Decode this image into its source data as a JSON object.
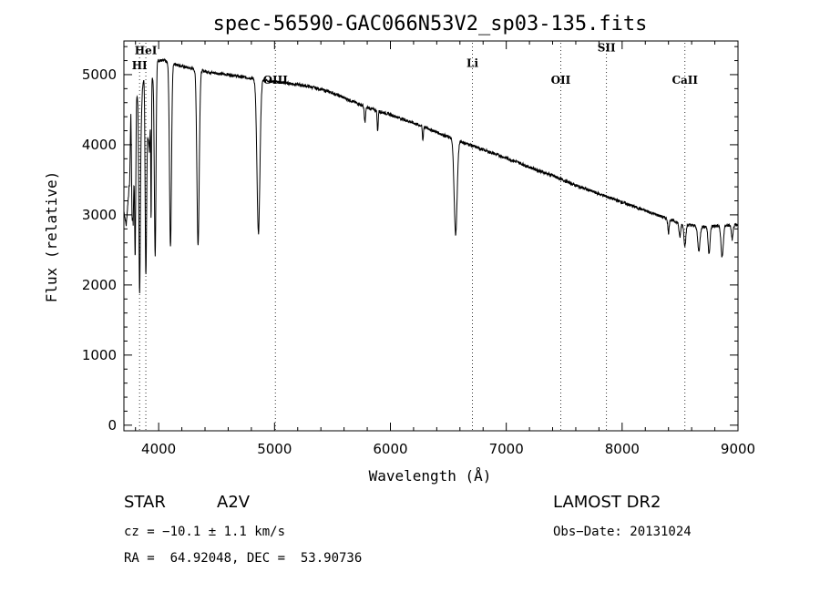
{
  "chart_data": {
    "type": "line",
    "title": "spec-56590-GAC066N53V2_sp03-135.fits",
    "xlabel": "Wavelength (Å)",
    "ylabel": "Flux (relative)",
    "xlim": [
      3700,
      9000
    ],
    "ylim": [
      -80,
      5480
    ],
    "xticks": [
      4000,
      5000,
      6000,
      7000,
      8000,
      9000
    ],
    "yticks": [
      0,
      1000,
      2000,
      3000,
      4000,
      5000
    ],
    "grid": false,
    "series": [
      {
        "x": [
          3700,
          3720,
          3740,
          3760,
          3780,
          3800,
          3820,
          3840,
          3860,
          3880,
          3900,
          3920,
          3940,
          3960,
          3980,
          4000,
          4050,
          4100,
          4150,
          4200,
          4250,
          4300,
          4350,
          4400,
          4450,
          4500,
          4550,
          4600,
          4650,
          4700,
          4750,
          4800,
          4850,
          4900,
          4950,
          5000,
          5050,
          5100,
          5150,
          5200,
          5300,
          5400,
          5500,
          5600,
          5700,
          5800,
          5900,
          6000,
          6100,
          6200,
          6300,
          6400,
          6500,
          6600,
          6700,
          6800,
          6900,
          7000,
          7100,
          7200,
          7300,
          7400,
          7500,
          7600,
          7700,
          7800,
          7900,
          8000,
          8100,
          8200,
          8300,
          8400,
          8500,
          8600,
          8700,
          8800,
          8900,
          9000
        ],
        "y": [
          3050,
          2850,
          3300,
          4500,
          2900,
          4950,
          4600,
          3800,
          4800,
          5100,
          4300,
          3900,
          4950,
          5000,
          5250,
          5200,
          5200,
          5150,
          5150,
          5120,
          5100,
          5080,
          5060,
          5050,
          5030,
          5020,
          5010,
          5000,
          4990,
          4970,
          4960,
          4950,
          4940,
          4930,
          4910,
          4900,
          4890,
          4880,
          4870,
          4860,
          4830,
          4790,
          4740,
          4670,
          4600,
          4530,
          4480,
          4430,
          4370,
          4310,
          4250,
          4180,
          4110,
          4050,
          3990,
          3930,
          3870,
          3810,
          3750,
          3680,
          3620,
          3560,
          3490,
          3420,
          3360,
          3300,
          3240,
          3180,
          3120,
          3060,
          3000,
          2940,
          2880,
          2850,
          2830,
          2840,
          2850,
          2850
        ]
      }
    ],
    "absorption_lines": [
      {
        "center": 3750,
        "depth": 400,
        "width": 6
      },
      {
        "center": 3770,
        "depth": 700,
        "width": 6
      },
      {
        "center": 3798,
        "depth": 2300,
        "width": 7
      },
      {
        "center": 3835,
        "depth": 2100,
        "width": 8
      },
      {
        "center": 3889,
        "depth": 2600,
        "width": 9
      },
      {
        "center": 3935,
        "depth": 1800,
        "width": 4
      },
      {
        "center": 3970,
        "depth": 2700,
        "width": 10
      },
      {
        "center": 4102,
        "depth": 2600,
        "width": 12
      },
      {
        "center": 4340,
        "depth": 2500,
        "width": 14
      },
      {
        "center": 4861,
        "depth": 2200,
        "width": 18
      },
      {
        "center": 5780,
        "depth": 220,
        "width": 8
      },
      {
        "center": 5890,
        "depth": 300,
        "width": 6
      },
      {
        "center": 6280,
        "depth": 200,
        "width": 6
      },
      {
        "center": 6563,
        "depth": 1350,
        "width": 18
      },
      {
        "center": 8400,
        "depth": 200,
        "width": 8
      },
      {
        "center": 8498,
        "depth": 200,
        "width": 10
      },
      {
        "center": 8542,
        "depth": 300,
        "width": 12
      },
      {
        "center": 8662,
        "depth": 350,
        "width": 14
      },
      {
        "center": 8750,
        "depth": 380,
        "width": 12
      },
      {
        "center": 8863,
        "depth": 450,
        "width": 14
      },
      {
        "center": 8950,
        "depth": 200,
        "width": 10
      }
    ],
    "line_markers": [
      {
        "label": "HeI",
        "x": 3889,
        "label_y": 5290
      },
      {
        "label": "HI",
        "x": 3835,
        "label_y": 5080
      },
      {
        "label": "OIII",
        "x": 5007,
        "label_y": 4870
      },
      {
        "label": "Li",
        "x": 6708,
        "label_y": 5110
      },
      {
        "label": "OII",
        "x": 7470,
        "label_y": 4870
      },
      {
        "label": "SII",
        "x": 7865,
        "label_y": 5330
      },
      {
        "label": "CaII",
        "x": 8542,
        "label_y": 4870
      }
    ]
  },
  "info": {
    "object_class": "STAR",
    "subclass": "A2V",
    "survey": "LAMOST DR2",
    "redshift": "cz = −10.1 ± 1.1 km/s",
    "obs_date": "Obs−Date: 20131024",
    "coords": "RA =  64.92048, DEC =  53.90736"
  }
}
